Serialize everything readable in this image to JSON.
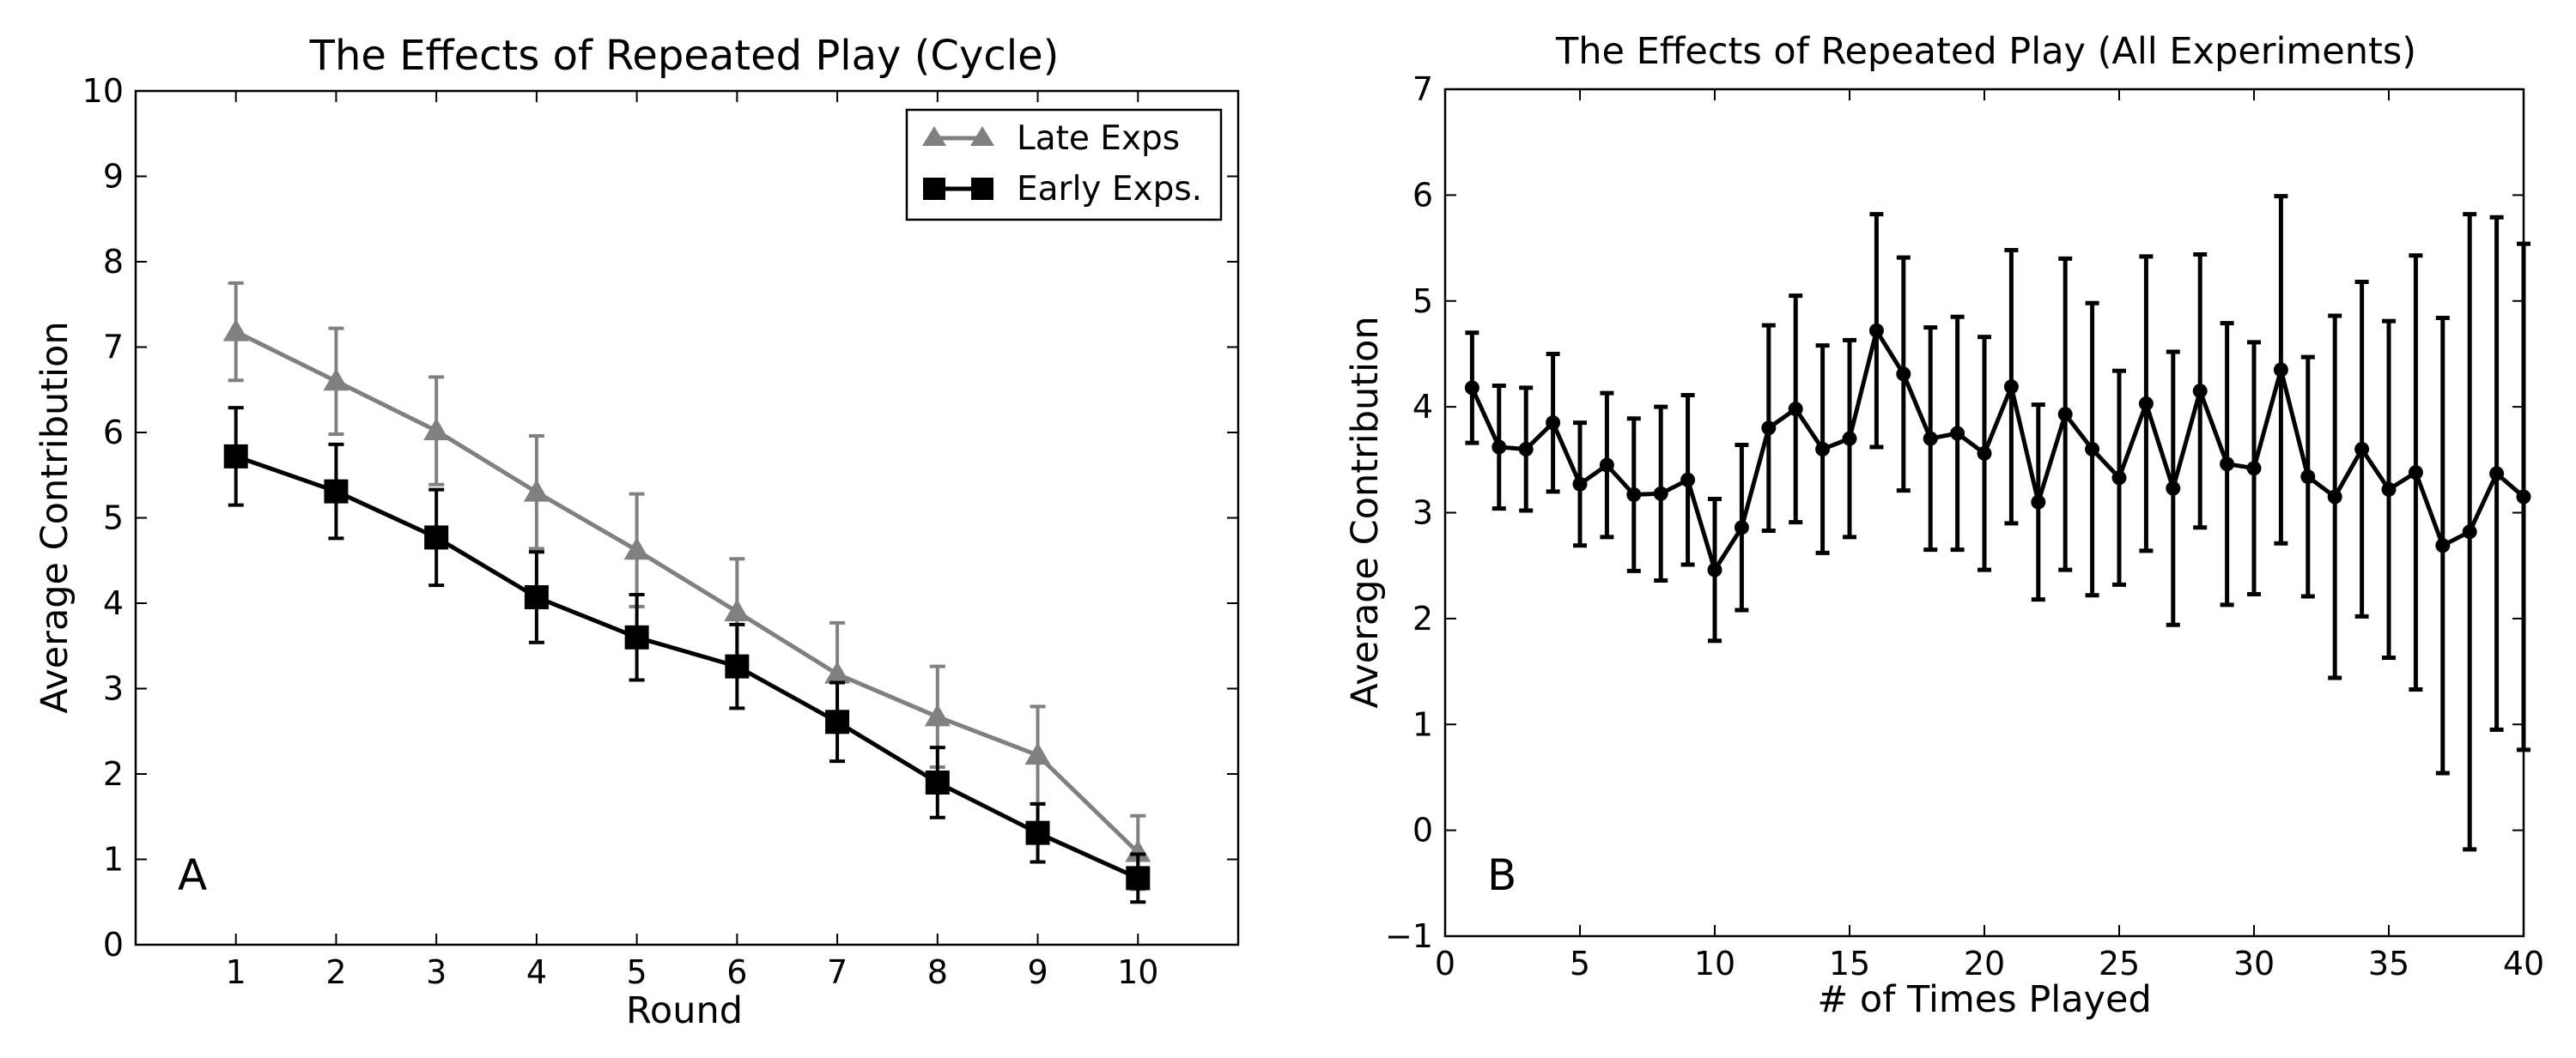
{
  "chart_data": [
    {
      "type": "line",
      "panel_label": "A",
      "title": "The Effects of Repeated Play (Cycle)",
      "xlabel": "Round",
      "ylabel": "Average Contribution",
      "xlim": [
        0,
        11
      ],
      "ylim": [
        0,
        10
      ],
      "x_ticks": [
        1,
        2,
        3,
        4,
        5,
        6,
        7,
        8,
        9,
        10
      ],
      "y_ticks": [
        0,
        1,
        2,
        3,
        4,
        5,
        6,
        7,
        8,
        9,
        10
      ],
      "x": [
        1,
        2,
        3,
        4,
        5,
        6,
        7,
        8,
        9,
        10
      ],
      "legend_position": "top-right",
      "series": [
        {
          "name": "Late Exps",
          "color": "#808080",
          "marker": "triangle",
          "values": [
            7.18,
            6.6,
            6.02,
            5.3,
            4.62,
            3.9,
            3.17,
            2.67,
            2.22,
            1.08
          ],
          "err": [
            0.57,
            0.62,
            0.63,
            0.66,
            0.66,
            0.62,
            0.6,
            0.59,
            0.57,
            0.43
          ]
        },
        {
          "name": "Early Exps.",
          "color": "#000000",
          "marker": "square",
          "values": [
            5.72,
            5.31,
            4.77,
            4.07,
            3.6,
            3.26,
            2.61,
            1.9,
            1.31,
            0.78
          ],
          "err": [
            0.57,
            0.55,
            0.56,
            0.53,
            0.5,
            0.49,
            0.46,
            0.41,
            0.34,
            0.28
          ]
        }
      ]
    },
    {
      "type": "line",
      "panel_label": "B",
      "title": "The Effects of Repeated Play (All Experiments)",
      "xlabel": "# of Times Played",
      "ylabel": "Average Contribution",
      "xlim": [
        0,
        40
      ],
      "ylim": [
        -1,
        7
      ],
      "x_ticks": [
        0,
        5,
        10,
        15,
        20,
        25,
        30,
        35,
        40
      ],
      "y_ticks": [
        -1,
        0,
        1,
        2,
        3,
        4,
        5,
        6,
        7
      ],
      "x_tick_labels": [
        "0",
        "5",
        "10",
        "15",
        "20",
        "25",
        "30",
        "35",
        "40"
      ],
      "y_tick_labels": [
        "−1",
        "0",
        "1",
        "2",
        "3",
        "4",
        "5",
        "6",
        "7"
      ],
      "series": [
        {
          "name": "All Experiments",
          "color": "#000000",
          "marker": "circle",
          "x": [
            1,
            2,
            3,
            4,
            5,
            6,
            7,
            8,
            9,
            10,
            11,
            12,
            13,
            14,
            15,
            16,
            17,
            18,
            19,
            20,
            21,
            22,
            23,
            24,
            25,
            26,
            27,
            28,
            29,
            30,
            31,
            32,
            33,
            34,
            35,
            36,
            37,
            38,
            39,
            40
          ],
          "values": [
            4.18,
            3.62,
            3.6,
            3.85,
            3.27,
            3.45,
            3.17,
            3.18,
            3.31,
            2.46,
            2.86,
            3.8,
            3.98,
            3.6,
            3.7,
            4.72,
            4.31,
            3.7,
            3.75,
            3.56,
            4.19,
            3.1,
            3.93,
            3.6,
            3.33,
            4.03,
            3.23,
            4.15,
            3.46,
            3.42,
            4.35,
            3.34,
            3.15,
            3.6,
            3.22,
            3.38,
            2.69,
            2.82,
            3.37,
            3.15
          ],
          "err": [
            0.52,
            0.58,
            0.58,
            0.65,
            0.58,
            0.68,
            0.72,
            0.82,
            0.8,
            0.67,
            0.78,
            0.97,
            1.07,
            0.98,
            0.93,
            1.1,
            1.1,
            1.05,
            1.1,
            1.1,
            1.29,
            0.92,
            1.47,
            1.38,
            1.01,
            1.39,
            1.29,
            1.29,
            1.33,
            1.19,
            1.64,
            1.13,
            1.71,
            1.58,
            1.59,
            2.05,
            2.15,
            3.0,
            2.42,
            2.39
          ]
        }
      ]
    }
  ]
}
